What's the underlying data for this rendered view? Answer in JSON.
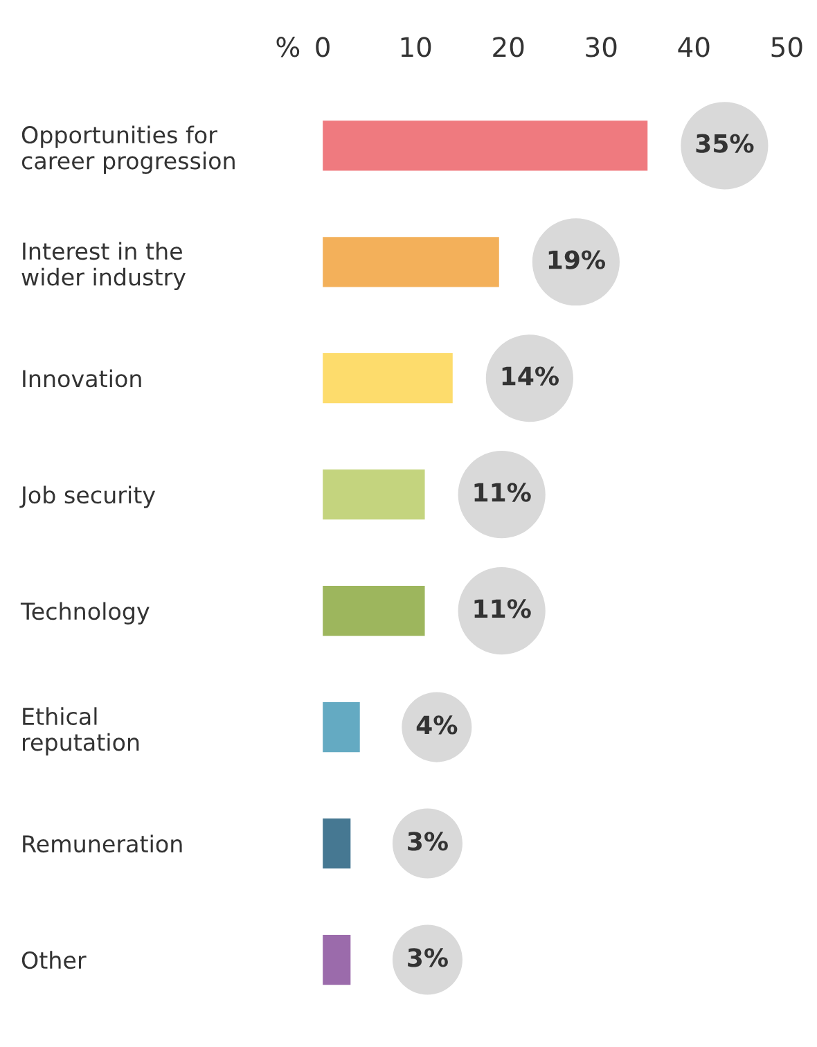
{
  "chart_data": {
    "type": "bar",
    "orientation": "horizontal",
    "xlabel": "%",
    "categories": [
      "Opportunities for\ncareer progression",
      "Interest in the\nwider industry",
      "Innovation",
      "Job security",
      "Technology",
      "Ethical\nreputation",
      "Remuneration",
      "Other"
    ],
    "values": [
      35,
      19,
      14,
      11,
      11,
      4,
      3,
      3
    ],
    "colors": [
      "#ef7a7f",
      "#f3b05a",
      "#fddc6c",
      "#c4d47e",
      "#9db65d",
      "#64aac2",
      "#467892",
      "#9b6bab"
    ],
    "value_labels": [
      "35%",
      "19%",
      "14%",
      "11%",
      "11%",
      "4%",
      "3%",
      "3%"
    ],
    "xlim": [
      0,
      50
    ],
    "xticks": [
      0,
      10,
      20,
      30,
      40,
      50
    ],
    "grid": false,
    "legend": false
  }
}
